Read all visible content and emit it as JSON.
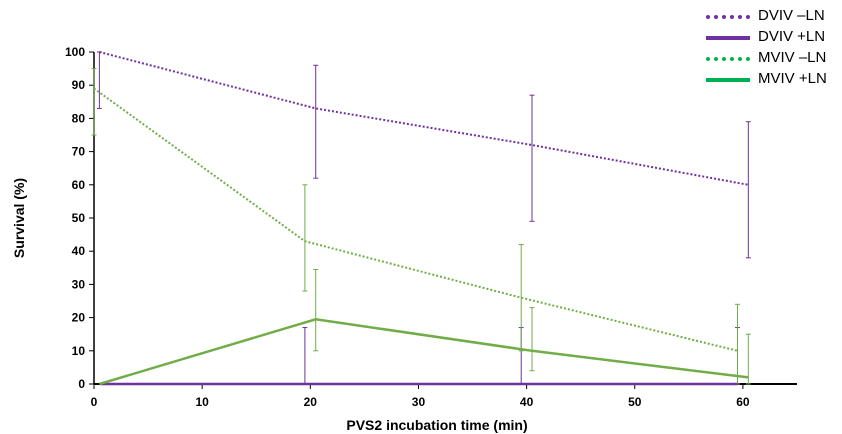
{
  "chart_data": {
    "type": "line",
    "title": "",
    "xlabel": "PVS2 incubation time (min)",
    "ylabel": "Survival (%)",
    "xlim": [
      0,
      65
    ],
    "ylim": [
      0,
      100
    ],
    "xticks": [
      0,
      10,
      20,
      30,
      40,
      50,
      60
    ],
    "yticks": [
      0,
      10,
      20,
      30,
      40,
      50,
      60,
      70,
      80,
      90,
      100
    ],
    "grid": false,
    "legend_position": "top-right",
    "series": [
      {
        "name": "DVIV –LN",
        "color": "#7030a0",
        "style": "dotted",
        "errorbar_color": "#7030a0",
        "points": [
          {
            "x": 0.5,
            "y": 100,
            "lo": 83,
            "hi": 100
          },
          {
            "x": 20.5,
            "y": 83,
            "lo": 62,
            "hi": 96
          },
          {
            "x": 40.5,
            "y": 72,
            "lo": 49,
            "hi": 87
          },
          {
            "x": 60.5,
            "y": 60,
            "lo": 38,
            "hi": 79
          }
        ]
      },
      {
        "name": "DVIV +LN",
        "color": "#7030a0",
        "style": "solid",
        "errorbar_color": "#7030a0",
        "points": [
          {
            "x": 0.5,
            "y": 0
          },
          {
            "x": 19.5,
            "y": 0,
            "lo": 0,
            "hi": 17
          },
          {
            "x": 39.5,
            "y": 0,
            "lo": 0,
            "hi": 17
          },
          {
            "x": 59.5,
            "y": 0,
            "lo": 0,
            "hi": 17
          }
        ]
      },
      {
        "name": "MVIV –LN",
        "color": "#00b050",
        "line_color": "#70ad47",
        "style": "dotted",
        "errorbar_color": "#70ad47",
        "points": [
          {
            "x": 0,
            "y": 89,
            "lo": 75,
            "hi": 95
          },
          {
            "x": 19.5,
            "y": 43,
            "lo": 28,
            "hi": 60
          },
          {
            "x": 39.5,
            "y": 26,
            "lo": 10,
            "hi": 42
          },
          {
            "x": 59.5,
            "y": 10,
            "lo": 0,
            "hi": 24
          }
        ]
      },
      {
        "name": "MVIV +LN",
        "color": "#00b050",
        "line_color": "#70ad47",
        "style": "solid",
        "errorbar_color": "#70ad47",
        "points": [
          {
            "x": 0.5,
            "y": 0
          },
          {
            "x": 20.5,
            "y": 19.5,
            "lo": 10,
            "hi": 34.5
          },
          {
            "x": 40.5,
            "y": 10,
            "lo": 4,
            "hi": 23
          },
          {
            "x": 60.5,
            "y": 2,
            "lo": 0,
            "hi": 15
          }
        ]
      }
    ]
  }
}
